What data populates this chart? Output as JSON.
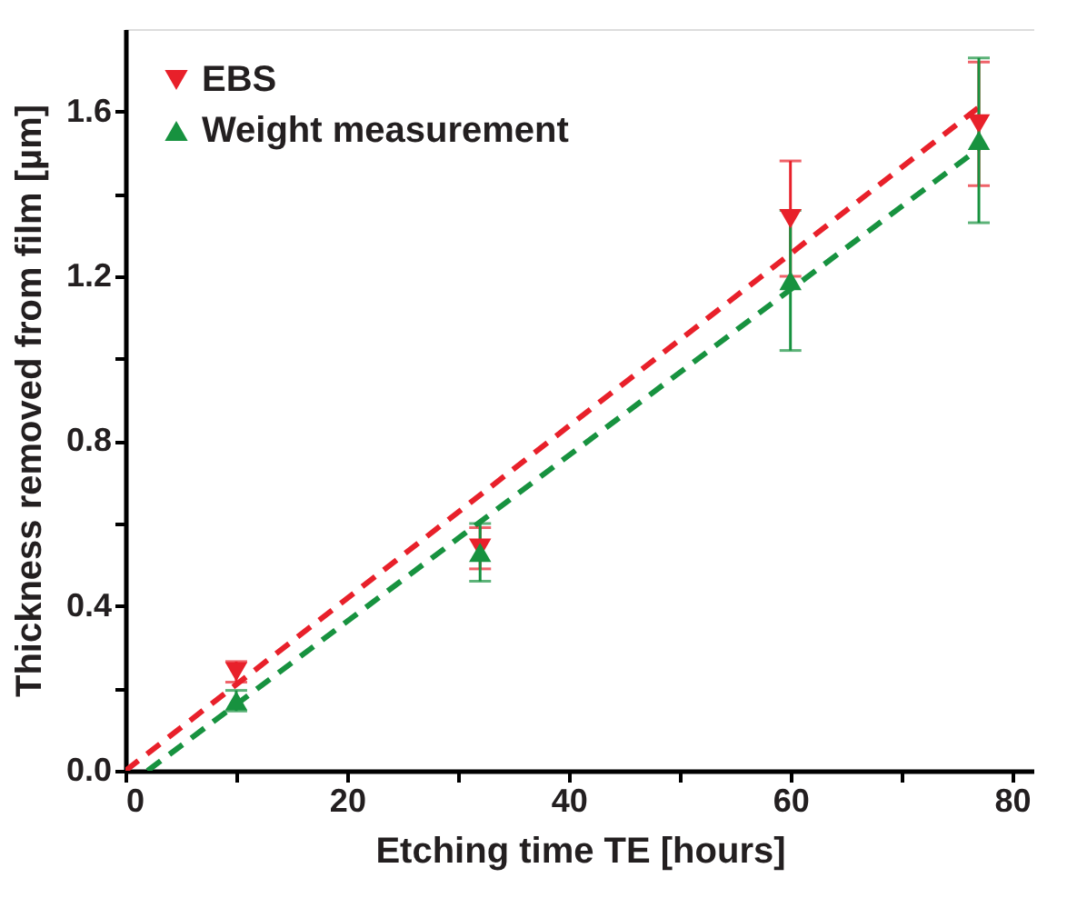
{
  "chart_data": {
    "type": "scatter",
    "xlabel": "Etching time TE [hours]",
    "ylabel": "Thickness removed from film [µm]",
    "xlim": [
      0,
      82
    ],
    "ylim": [
      0,
      1.8
    ],
    "xticks": [
      0,
      {
        "value": 10,
        "label": null
      },
      20,
      {
        "value": 30,
        "label": null
      },
      40,
      {
        "value": 50,
        "label": null
      },
      60,
      {
        "value": 70,
        "label": null
      },
      80
    ],
    "yticks": [
      "0.0",
      {
        "value": 0.2,
        "label": null
      },
      {
        "value": 0.4,
        "label": "0.4"
      },
      {
        "value": 0.6,
        "label": null
      },
      {
        "value": 0.8,
        "label": "0.8"
      },
      {
        "value": 1.0,
        "label": null
      },
      {
        "value": 1.2,
        "label": "1.2"
      },
      {
        "value": 1.4,
        "label": null
      },
      {
        "value": 1.6,
        "label": "1.6"
      }
    ],
    "grid": false,
    "legend": "top left",
    "series": [
      {
        "name": "EBS",
        "color": "#e8202a",
        "marker": "triangle-down",
        "x": [
          10,
          32,
          60,
          77
        ],
        "values": [
          0.24,
          0.54,
          1.34,
          1.57
        ],
        "errors": [
          0.025,
          0.05,
          0.14,
          0.15
        ]
      },
      {
        "name": "Weight measurement",
        "color": "#17923f",
        "marker": "triangle",
        "x": [
          10,
          32,
          60,
          77
        ],
        "values": [
          0.17,
          0.53,
          1.19,
          1.53
        ],
        "errors": [
          0.025,
          0.07,
          0.17,
          0.2
        ]
      },
      {
        "type": "line",
        "color": "#e8202a",
        "marker": "none",
        "line_style": "dashed",
        "x": [
          0,
          77
        ],
        "values": [
          0,
          1.61
        ]
      },
      {
        "type": "line",
        "color": "#17923f",
        "marker": "none",
        "line_style": "dashed",
        "x": [
          2,
          77
        ],
        "values": [
          0,
          1.51
        ]
      }
    ]
  }
}
